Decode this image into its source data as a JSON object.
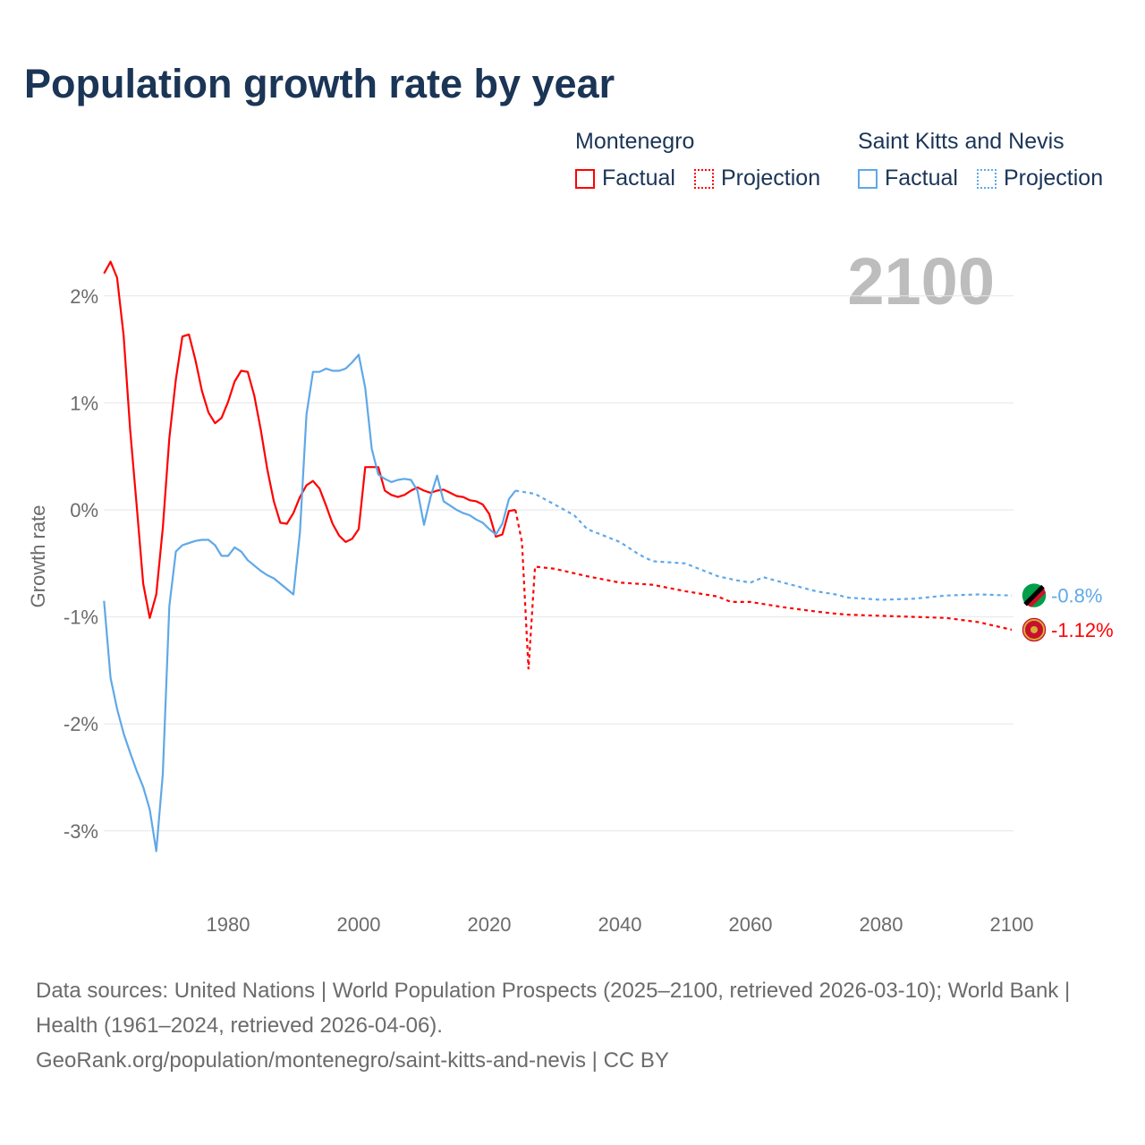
{
  "title": "Population growth rate by year",
  "year_display": "2100",
  "legend": [
    {
      "name": "Montenegro",
      "color": "#ff0000",
      "factual": "Factual",
      "projection": "Projection"
    },
    {
      "name": "Saint Kitts and Nevis",
      "color": "#5fa8e8",
      "factual": "Factual",
      "projection": "Projection"
    }
  ],
  "footer": {
    "sources": "Data sources: United Nations | World Population Prospects (2025–2100, retrieved 2026-03-10); World Bank | Health (1961–2024, retrieved 2026-04-06).",
    "link": "GeoRank.org/population/montenegro/saint-kitts-and-nevis | CC BY"
  },
  "chart_data": {
    "type": "line",
    "title": "Population growth rate by year",
    "xlabel": "",
    "ylabel": "Growth rate",
    "xlim": [
      1961,
      2100
    ],
    "ylim": [
      -3.5,
      2.5
    ],
    "x_ticks": [
      1980,
      2000,
      2020,
      2040,
      2060,
      2080,
      2100
    ],
    "x_tick_labels": [
      "1980",
      "2000",
      "2020",
      "2040",
      "2060",
      "2080",
      "2100"
    ],
    "y_ticks": [
      2,
      1,
      0,
      -1,
      -2,
      -3
    ],
    "y_tick_labels": [
      "2%",
      "1%",
      "0%",
      "-1%",
      "-2%",
      "-3%"
    ],
    "grid": true,
    "legend_position": "top-right",
    "series": [
      {
        "name": "Montenegro",
        "color": "#ff0000",
        "end_label": "-1.12%",
        "factual": {
          "x": [
            1961,
            1962,
            1963,
            1964,
            1965,
            1966,
            1967,
            1968,
            1969,
            1970,
            1971,
            1972,
            1973,
            1974,
            1975,
            1976,
            1977,
            1978,
            1979,
            1980,
            1981,
            1982,
            1983,
            1984,
            1985,
            1986,
            1987,
            1988,
            1989,
            1990,
            1991,
            1992,
            1993,
            1994,
            1995,
            1996,
            1997,
            1998,
            1999,
            2000,
            2001,
            2002,
            2003,
            2004,
            2005,
            2006,
            2007,
            2008,
            2009,
            2010,
            2011,
            2012,
            2013,
            2014,
            2015,
            2016,
            2017,
            2018,
            2019,
            2020,
            2021,
            2022,
            2023,
            2024
          ],
          "y": [
            2.21,
            2.32,
            2.17,
            1.63,
            0.75,
            0.04,
            -0.69,
            -1.01,
            -0.79,
            -0.17,
            0.67,
            1.22,
            1.62,
            1.64,
            1.4,
            1.11,
            0.91,
            0.81,
            0.86,
            1.01,
            1.2,
            1.3,
            1.29,
            1.07,
            0.75,
            0.38,
            0.08,
            -0.12,
            -0.13,
            -0.03,
            0.12,
            0.23,
            0.27,
            0.2,
            0.04,
            -0.13,
            -0.24,
            -0.3,
            -0.27,
            -0.18,
            0.4,
            0.4,
            0.4,
            0.18,
            0.14,
            0.12,
            0.14,
            0.18,
            0.21,
            0.18,
            0.16,
            0.18,
            0.19,
            0.16,
            0.13,
            0.12,
            0.09,
            0.08,
            0.05,
            -0.04,
            -0.25,
            -0.23,
            -0.01,
            0.0
          ]
        },
        "projection": {
          "x": [
            2024,
            2025,
            2026,
            2027,
            2030,
            2035,
            2040,
            2045,
            2050,
            2055,
            2057,
            2060,
            2065,
            2070,
            2073,
            2075,
            2080,
            2085,
            2090,
            2095,
            2100
          ],
          "y": [
            0.0,
            -0.3,
            -1.49,
            -0.53,
            -0.55,
            -0.62,
            -0.68,
            -0.7,
            -0.76,
            -0.81,
            -0.86,
            -0.86,
            -0.91,
            -0.95,
            -0.97,
            -0.98,
            -0.99,
            -1.0,
            -1.01,
            -1.05,
            -1.12
          ]
        }
      },
      {
        "name": "Saint Kitts and Nevis",
        "color": "#5fa8e8",
        "end_label": "-0.8%",
        "factual": {
          "x": [
            1961,
            1962,
            1963,
            1964,
            1965,
            1966,
            1967,
            1968,
            1969,
            1970,
            1971,
            1972,
            1973,
            1974,
            1975,
            1976,
            1977,
            1978,
            1979,
            1980,
            1981,
            1982,
            1983,
            1984,
            1985,
            1986,
            1987,
            1988,
            1989,
            1990,
            1991,
            1992,
            1993,
            1994,
            1995,
            1996,
            1997,
            1998,
            1999,
            2000,
            2001,
            2002,
            2003,
            2004,
            2005,
            2006,
            2007,
            2008,
            2009,
            2010,
            2011,
            2012,
            2013,
            2014,
            2015,
            2016,
            2017,
            2018,
            2019,
            2020,
            2021,
            2022,
            2023,
            2024
          ],
          "y": [
            -0.85,
            -1.57,
            -1.86,
            -2.09,
            -2.27,
            -2.44,
            -2.59,
            -2.8,
            -3.19,
            -2.47,
            -0.9,
            -0.39,
            -0.33,
            -0.31,
            -0.29,
            -0.28,
            -0.28,
            -0.33,
            -0.43,
            -0.43,
            -0.35,
            -0.39,
            -0.47,
            -0.52,
            -0.57,
            -0.61,
            -0.64,
            -0.69,
            -0.74,
            -0.79,
            -0.21,
            0.89,
            1.29,
            1.29,
            1.32,
            1.3,
            1.3,
            1.32,
            1.38,
            1.45,
            1.14,
            0.57,
            0.33,
            0.29,
            0.26,
            0.28,
            0.29,
            0.28,
            0.18,
            -0.14,
            0.12,
            0.32,
            0.08,
            0.04,
            0.0,
            -0.03,
            -0.05,
            -0.09,
            -0.12,
            -0.18,
            -0.23,
            -0.13,
            0.1,
            0.18
          ]
        },
        "projection": {
          "x": [
            2024,
            2027,
            2030,
            2033,
            2035,
            2040,
            2043,
            2045,
            2050,
            2055,
            2058,
            2060,
            2062,
            2065,
            2070,
            2073,
            2075,
            2080,
            2085,
            2090,
            2095,
            2100
          ],
          "y": [
            0.18,
            0.15,
            0.05,
            -0.05,
            -0.18,
            -0.3,
            -0.42,
            -0.48,
            -0.5,
            -0.62,
            -0.66,
            -0.68,
            -0.63,
            -0.68,
            -0.76,
            -0.79,
            -0.82,
            -0.84,
            -0.83,
            -0.8,
            -0.79,
            -0.8
          ]
        }
      }
    ]
  }
}
